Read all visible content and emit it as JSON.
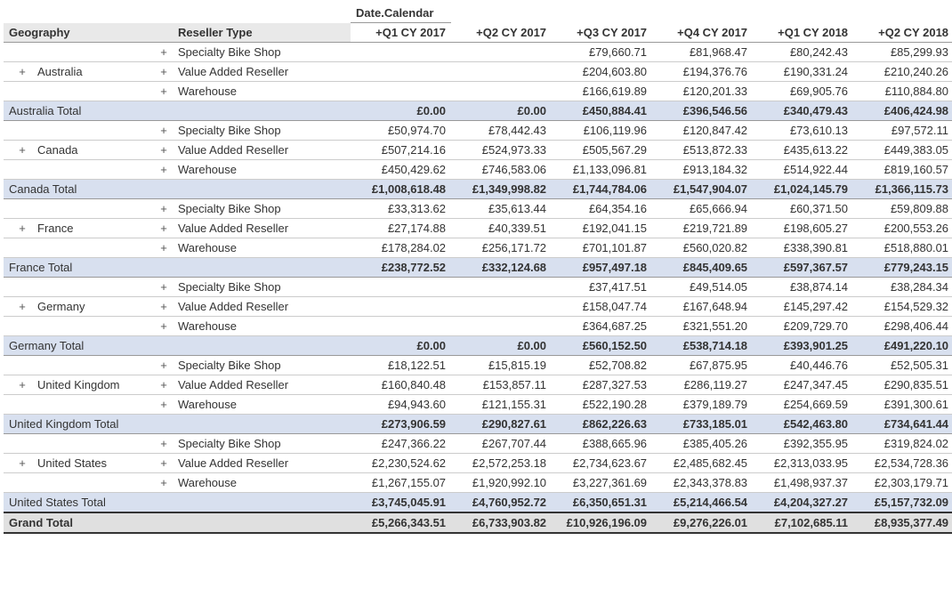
{
  "header": {
    "supercol": "Date.Calendar",
    "geo": "Geography",
    "rtype": "Reseller Type",
    "quarters": [
      "+Q1 CY 2017",
      "+Q2 CY 2017",
      "+Q3 CY 2017",
      "+Q4 CY 2017",
      "+Q1 CY 2018",
      "+Q2 CY 2018"
    ]
  },
  "groups": [
    {
      "geo": "Australia",
      "rows": [
        {
          "rtype": "Specialty Bike Shop",
          "v": [
            "",
            "",
            "£79,660.71",
            "£81,968.47",
            "£80,242.43",
            "£85,299.93"
          ]
        },
        {
          "rtype": "Value Added Reseller",
          "v": [
            "",
            "",
            "£204,603.80",
            "£194,376.76",
            "£190,331.24",
            "£210,240.26"
          ]
        },
        {
          "rtype": "Warehouse",
          "v": [
            "",
            "",
            "£166,619.89",
            "£120,201.33",
            "£69,905.76",
            "£110,884.80"
          ]
        }
      ],
      "total_label": "Australia Total",
      "total": [
        "£0.00",
        "£0.00",
        "£450,884.41",
        "£396,546.56",
        "£340,479.43",
        "£406,424.98"
      ]
    },
    {
      "geo": "Canada",
      "rows": [
        {
          "rtype": "Specialty Bike Shop",
          "v": [
            "£50,974.70",
            "£78,442.43",
            "£106,119.96",
            "£120,847.42",
            "£73,610.13",
            "£97,572.11"
          ]
        },
        {
          "rtype": "Value Added Reseller",
          "v": [
            "£507,214.16",
            "£524,973.33",
            "£505,567.29",
            "£513,872.33",
            "£435,613.22",
            "£449,383.05"
          ]
        },
        {
          "rtype": "Warehouse",
          "v": [
            "£450,429.62",
            "£746,583.06",
            "£1,133,096.81",
            "£913,184.32",
            "£514,922.44",
            "£819,160.57"
          ]
        }
      ],
      "total_label": "Canada Total",
      "total": [
        "£1,008,618.48",
        "£1,349,998.82",
        "£1,744,784.06",
        "£1,547,904.07",
        "£1,024,145.79",
        "£1,366,115.73"
      ]
    },
    {
      "geo": "France",
      "rows": [
        {
          "rtype": "Specialty Bike Shop",
          "v": [
            "£33,313.62",
            "£35,613.44",
            "£64,354.16",
            "£65,666.94",
            "£60,371.50",
            "£59,809.88"
          ]
        },
        {
          "rtype": "Value Added Reseller",
          "v": [
            "£27,174.88",
            "£40,339.51",
            "£192,041.15",
            "£219,721.89",
            "£198,605.27",
            "£200,553.26"
          ]
        },
        {
          "rtype": "Warehouse",
          "v": [
            "£178,284.02",
            "£256,171.72",
            "£701,101.87",
            "£560,020.82",
            "£338,390.81",
            "£518,880.01"
          ]
        }
      ],
      "total_label": "France Total",
      "total": [
        "£238,772.52",
        "£332,124.68",
        "£957,497.18",
        "£845,409.65",
        "£597,367.57",
        "£779,243.15"
      ]
    },
    {
      "geo": "Germany",
      "rows": [
        {
          "rtype": "Specialty Bike Shop",
          "v": [
            "",
            "",
            "£37,417.51",
            "£49,514.05",
            "£38,874.14",
            "£38,284.34"
          ]
        },
        {
          "rtype": "Value Added Reseller",
          "v": [
            "",
            "",
            "£158,047.74",
            "£167,648.94",
            "£145,297.42",
            "£154,529.32"
          ]
        },
        {
          "rtype": "Warehouse",
          "v": [
            "",
            "",
            "£364,687.25",
            "£321,551.20",
            "£209,729.70",
            "£298,406.44"
          ]
        }
      ],
      "total_label": "Germany Total",
      "total": [
        "£0.00",
        "£0.00",
        "£560,152.50",
        "£538,714.18",
        "£393,901.25",
        "£491,220.10"
      ]
    },
    {
      "geo": "United Kingdom",
      "rows": [
        {
          "rtype": "Specialty Bike Shop",
          "v": [
            "£18,122.51",
            "£15,815.19",
            "£52,708.82",
            "£67,875.95",
            "£40,446.76",
            "£52,505.31"
          ]
        },
        {
          "rtype": "Value Added Reseller",
          "v": [
            "£160,840.48",
            "£153,857.11",
            "£287,327.53",
            "£286,119.27",
            "£247,347.45",
            "£290,835.51"
          ]
        },
        {
          "rtype": "Warehouse",
          "v": [
            "£94,943.60",
            "£121,155.31",
            "£522,190.28",
            "£379,189.79",
            "£254,669.59",
            "£391,300.61"
          ]
        }
      ],
      "total_label": "United Kingdom Total",
      "total": [
        "£273,906.59",
        "£290,827.61",
        "£862,226.63",
        "£733,185.01",
        "£542,463.80",
        "£734,641.44"
      ]
    },
    {
      "geo": "United States",
      "rows": [
        {
          "rtype": "Specialty Bike Shop",
          "v": [
            "£247,366.22",
            "£267,707.44",
            "£388,665.96",
            "£385,405.26",
            "£392,355.95",
            "£319,824.02"
          ]
        },
        {
          "rtype": "Value Added Reseller",
          "v": [
            "£2,230,524.62",
            "£2,572,253.18",
            "£2,734,623.67",
            "£2,485,682.45",
            "£2,313,033.95",
            "£2,534,728.36"
          ]
        },
        {
          "rtype": "Warehouse",
          "v": [
            "£1,267,155.07",
            "£1,920,992.10",
            "£3,227,361.69",
            "£2,343,378.83",
            "£1,498,937.37",
            "£2,303,179.71"
          ]
        }
      ],
      "total_label": "United States Total",
      "total": [
        "£3,745,045.91",
        "£4,760,952.72",
        "£6,350,651.31",
        "£5,214,466.54",
        "£4,204,327.27",
        "£5,157,732.09"
      ]
    }
  ],
  "grand": {
    "label": "Grand Total",
    "v": [
      "£5,266,343.51",
      "£6,733,903.82",
      "£10,926,196.09",
      "£9,276,226.01",
      "£7,102,685.11",
      "£8,935,377.49"
    ]
  },
  "style": {
    "subtotal_bg": "#d8e0ef",
    "header_bg": "#e9e9e9",
    "grand_bg": "#e0e0e0",
    "grid_color": "#cccccc"
  }
}
